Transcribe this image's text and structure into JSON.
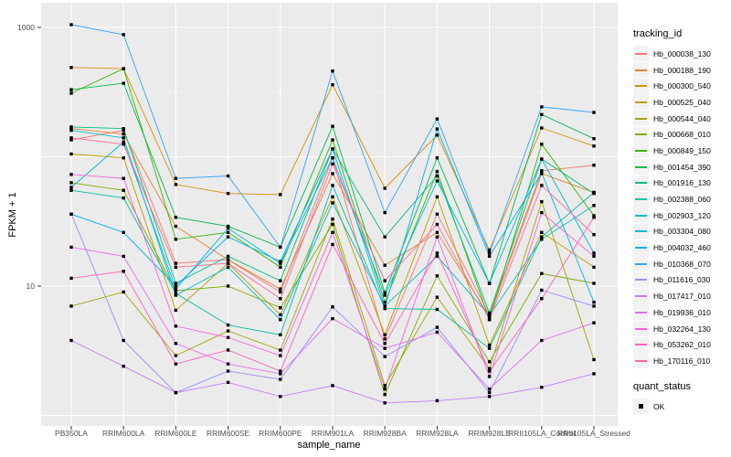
{
  "figure": {
    "xlabel": "sample_name",
    "ylabel": "FPKM + 1",
    "legend_title": "tracking_id",
    "legend2_title": "quant_status",
    "panel_bg": "#EBEBEB",
    "grid_color": "#FFFFFF",
    "axis_text_color": "#4D4D4D",
    "point_color": "#000000"
  },
  "chart_data": {
    "type": "line",
    "title": "",
    "xlabel": "sample_name",
    "ylabel": "FPKM + 1",
    "yscale": "log10",
    "ylim": [
      1,
      1300
    ],
    "grid": true,
    "legend_position": "right",
    "legend_title": "tracking_id",
    "y_tick_values": [
      10,
      1000
    ],
    "y_tick_labels": [
      "10",
      "1000"
    ],
    "point_shape": "filled-square",
    "quant_status": {
      "title": "quant_status",
      "items": [
        "OK"
      ]
    },
    "categories": [
      "PB350LA",
      "RRIM600LA",
      "RRIM600LE",
      "RRIM600SE",
      "RRIM600PE",
      "RRIM901LA",
      "RRIM928BA",
      "RRIM928LA",
      "RRIM928LE",
      "RRII105LA_Control",
      "RRII105LA_Stressed"
    ],
    "series": [
      {
        "name": "Hb_000038_130",
        "color": "#F8766D",
        "values": [
          135,
          160,
          15,
          16,
          9,
          98,
          3.9,
          36,
          6,
          78,
          86
        ]
      },
      {
        "name": "Hb_000188_190",
        "color": "#EA8331",
        "values": [
          165,
          150,
          29,
          16,
          9.5,
          74,
          14.5,
          26,
          5.8,
          74,
          53
        ]
      },
      {
        "name": "Hb_000300_540",
        "color": "#D89000",
        "values": [
          490,
          480,
          61,
          52,
          51,
          360,
          57,
          147,
          19,
          167,
          121
        ]
      },
      {
        "name": "Hb_000525_040",
        "color": "#C09B00",
        "values": [
          105,
          98,
          6.5,
          15,
          6,
          49,
          4.2,
          49,
          3.5,
          26,
          14
        ]
      },
      {
        "name": "Hb_000544_040",
        "color": "#A3A500",
        "values": [
          7,
          9,
          2.9,
          4.5,
          3.2,
          33,
          1.7,
          8.2,
          2.3,
          45,
          2.7
        ]
      },
      {
        "name": "Hb_000668_010",
        "color": "#7CAE00",
        "values": [
          63,
          55,
          9.2,
          10,
          6.8,
          30,
          1.45,
          12,
          2.6,
          12.5,
          10.5
        ]
      },
      {
        "name": "Hb_000849_150",
        "color": "#39B600",
        "values": [
          310,
          480,
          23,
          26,
          14,
          135,
          7.5,
          77,
          5.5,
          125,
          35
        ]
      },
      {
        "name": "Hb_001454_390",
        "color": "#00BB4E",
        "values": [
          330,
          370,
          34,
          29,
          20,
          172,
          8.9,
          98,
          10.5,
          212,
          138
        ]
      },
      {
        "name": "Hb_001916_130",
        "color": "#00BF7D",
        "values": [
          170,
          165,
          10.5,
          17,
          11,
          115,
          24,
          71,
          6.2,
          96,
          52
        ]
      },
      {
        "name": "Hb_002388_060",
        "color": "#00C1A3",
        "values": [
          55,
          48,
          8.8,
          5,
          4.2,
          60,
          6.7,
          6.6,
          3.3,
          24,
          53
        ]
      },
      {
        "name": "Hb_002903_120",
        "color": "#00BFC4",
        "values": [
          160,
          140,
          8.5,
          14,
          5.5,
          44,
          7.0,
          17,
          5.9,
          23,
          42
        ]
      },
      {
        "name": "Hb_003304_080",
        "color": "#00BAE0",
        "values": [
          58,
          130,
          9.5,
          28,
          15,
          98,
          8.5,
          65,
          10.5,
          96,
          18
        ]
      },
      {
        "name": "Hb_004032_460",
        "color": "#00B0F6",
        "values": [
          36,
          26,
          10,
          24,
          15.5,
          115,
          6.9,
          164,
          17,
          75,
          7.5
        ]
      },
      {
        "name": "Hb_010368_070",
        "color": "#35A2FF",
        "values": [
          1050,
          880,
          68,
          71,
          20,
          460,
          37,
          196,
          18,
          243,
          220
        ]
      },
      {
        "name": "Hb_011616_030",
        "color": "#9590FF",
        "values": [
          36,
          3.8,
          1.5,
          2.2,
          1.9,
          6.9,
          2.85,
          4.8,
          1.5,
          9.3,
          7
        ]
      },
      {
        "name": "Hb_017417_010",
        "color": "#C77CFF",
        "values": [
          3.8,
          2.4,
          1.5,
          1.8,
          1.4,
          1.7,
          1.25,
          1.3,
          1.4,
          1.65,
          2.1
        ]
      },
      {
        "name": "Hb_019936_010",
        "color": "#E76BF3",
        "values": [
          20,
          17,
          3.6,
          2.5,
          2.1,
          5.6,
          3.3,
          4.4,
          1.6,
          3.8,
          5.2
        ]
      },
      {
        "name": "Hb_032264_130",
        "color": "#FA62DB",
        "values": [
          73,
          68,
          4.9,
          4,
          2.9,
          26,
          1.6,
          24,
          2.0,
          37,
          17
        ]
      },
      {
        "name": "Hb_053262_010",
        "color": "#FF62BC",
        "values": [
          11.5,
          13,
          2.5,
          3.2,
          2.2,
          21,
          3.6,
          18,
          2.2,
          8,
          34
        ]
      },
      {
        "name": "Hb_170116_010",
        "color": "#FF6A98",
        "values": [
          140,
          125,
          14,
          15,
          8,
          88,
          11,
          30,
          5.5,
          60,
          25
        ]
      }
    ]
  }
}
